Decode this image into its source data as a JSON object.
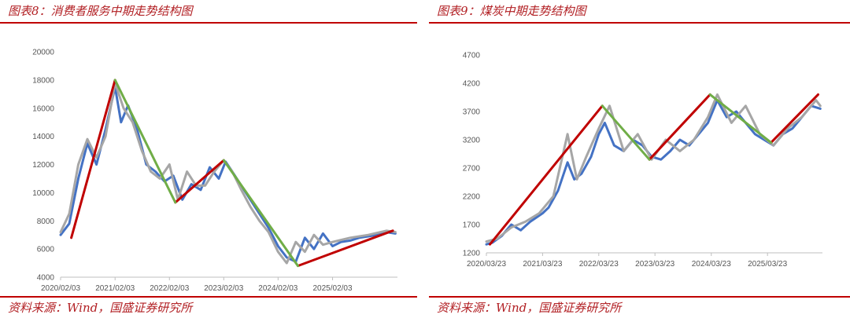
{
  "left": {
    "title": "图表8：消费者服务中期走势结构图",
    "source": "资料来源：Wind，国盛证券研究所"
  },
  "right": {
    "title": "图表9：煤炭中期走势结构图",
    "source": "资料来源：Wind，国盛证券研究所"
  },
  "chart_data": [
    {
      "type": "line",
      "title": "",
      "xlabel": "",
      "ylabel": "",
      "x_ticks": [
        "2020/02/03",
        "2021/02/03",
        "2022/02/03",
        "2023/02/03",
        "2024/02/03",
        "2025/02/03"
      ],
      "x_range": [
        "2020/02/03",
        "2026/04/15"
      ],
      "ylim": [
        4000,
        20000
      ],
      "y_ticks": [
        4000,
        6000,
        8000,
        10000,
        12000,
        14000,
        16000,
        18000,
        20000
      ],
      "grid": false,
      "legend": "none",
      "colors": {
        "price": "#4472c4",
        "smooth": "#a6a6a6",
        "up": "#c00000",
        "down": "#70ad47"
      },
      "series": [
        {
          "role": "price",
          "x": [
            "2020/02/03",
            "2020/04/01",
            "2020/06/01",
            "2020/08/01",
            "2020/10/01",
            "2020/12/01",
            "2021/02/03",
            "2021/03/15",
            "2021/05/01",
            "2021/07/01",
            "2021/09/01",
            "2021/11/01",
            "2022/01/01",
            "2022/03/01",
            "2022/05/01",
            "2022/07/01",
            "2022/09/01",
            "2022/11/01",
            "2023/01/01",
            "2023/02/15",
            "2023/04/01",
            "2023/06/01",
            "2023/08/01",
            "2023/10/01",
            "2023/12/01",
            "2024/02/03",
            "2024/04/01",
            "2024/06/01",
            "2024/08/01",
            "2024/10/01",
            "2024/12/01",
            "2025/02/03",
            "2025/04/01",
            "2025/06/01",
            "2025/08/01",
            "2025/10/01",
            "2025/12/01",
            "2026/02/01",
            "2026/04/01"
          ],
          "y": [
            7000,
            7800,
            11000,
            13500,
            12000,
            14500,
            17500,
            15000,
            16200,
            14500,
            12000,
            11500,
            10800,
            11200,
            9500,
            10600,
            10200,
            11800,
            11000,
            12200,
            11500,
            10500,
            9500,
            8500,
            7500,
            6200,
            5400,
            5100,
            6800,
            6000,
            7100,
            6200,
            6500,
            6600,
            6800,
            6900,
            7000,
            7200,
            7100
          ]
        },
        {
          "role": "smooth",
          "x": [
            "2020/02/03",
            "2020/04/01",
            "2020/06/01",
            "2020/08/01",
            "2020/10/01",
            "2020/12/01",
            "2021/02/03",
            "2021/04/01",
            "2021/06/01",
            "2021/08/01",
            "2021/10/01",
            "2021/12/01",
            "2022/02/03",
            "2022/04/01",
            "2022/06/01",
            "2022/08/01",
            "2022/10/01",
            "2022/12/01",
            "2023/02/03",
            "2023/04/01",
            "2023/06/01",
            "2023/08/01",
            "2023/10/01",
            "2023/12/01",
            "2024/02/03",
            "2024/04/01",
            "2024/06/01",
            "2024/08/01",
            "2024/10/01",
            "2024/12/01",
            "2025/02/03",
            "2025/06/01",
            "2025/10/01",
            "2026/02/01",
            "2026/04/01"
          ],
          "y": [
            7200,
            8500,
            12000,
            13800,
            12500,
            14000,
            17800,
            16000,
            15000,
            13000,
            11500,
            11000,
            12000,
            9500,
            11500,
            10500,
            10500,
            11500,
            12300,
            11500,
            10200,
            9000,
            8000,
            7200,
            5800,
            5000,
            6500,
            5800,
            7000,
            6300,
            6500,
            6800,
            7000,
            7300,
            7200
          ]
        },
        {
          "role": "up",
          "x": [
            "2020/04/15",
            "2021/02/03"
          ],
          "y": [
            6800,
            18000
          ]
        },
        {
          "role": "down",
          "x": [
            "2021/02/03",
            "2022/03/15"
          ],
          "y": [
            18000,
            9300
          ]
        },
        {
          "role": "up",
          "x": [
            "2022/03/15",
            "2023/02/03"
          ],
          "y": [
            9300,
            12300
          ]
        },
        {
          "role": "down",
          "x": [
            "2023/02/03",
            "2024/06/15"
          ],
          "y": [
            12300,
            4800
          ]
        },
        {
          "role": "up",
          "x": [
            "2024/06/15",
            "2026/03/15"
          ],
          "y": [
            4800,
            7300
          ]
        }
      ]
    },
    {
      "type": "line",
      "title": "",
      "xlabel": "",
      "ylabel": "",
      "x_ticks": [
        "2020/03/23",
        "2021/03/23",
        "2022/03/23",
        "2023/03/23",
        "2024/03/23",
        "2025/03/23"
      ],
      "x_range": [
        "2020/03/23",
        "2026/03/15"
      ],
      "ylim": [
        1200,
        4700
      ],
      "y_ticks": [
        1200,
        1700,
        2200,
        2700,
        3200,
        3700,
        4200,
        4700
      ],
      "grid": false,
      "legend": "none",
      "colors": {
        "price": "#4472c4",
        "smooth": "#a6a6a6",
        "up": "#c00000",
        "down": "#70ad47"
      },
      "series": [
        {
          "role": "price",
          "x": [
            "2020/03/23",
            "2020/05/01",
            "2020/07/01",
            "2020/09/01",
            "2020/11/01",
            "2021/01/01",
            "2021/03/23",
            "2021/05/01",
            "2021/07/01",
            "2021/09/01",
            "2021/10/15",
            "2021/12/01",
            "2022/02/01",
            "2022/03/23",
            "2022/05/01",
            "2022/07/01",
            "2022/09/01",
            "2022/11/01",
            "2023/01/01",
            "2023/03/01",
            "2023/05/01",
            "2023/07/01",
            "2023/09/01",
            "2023/11/01",
            "2024/01/01",
            "2024/03/01",
            "2024/05/01",
            "2024/07/01",
            "2024/09/01",
            "2024/11/01",
            "2025/01/01",
            "2025/03/01",
            "2025/05/01",
            "2025/07/01",
            "2025/09/01",
            "2025/11/01",
            "2026/01/01",
            "2026/03/01"
          ],
          "y": [
            1350,
            1380,
            1500,
            1700,
            1600,
            1750,
            1900,
            2000,
            2300,
            2800,
            2500,
            2600,
            2900,
            3300,
            3500,
            3100,
            3000,
            3200,
            3100,
            2900,
            2850,
            3000,
            3200,
            3100,
            3300,
            3500,
            3900,
            3600,
            3700,
            3500,
            3300,
            3200,
            3100,
            3300,
            3400,
            3600,
            3800,
            3750
          ]
        },
        {
          "role": "smooth",
          "x": [
            "2020/03/23",
            "2020/06/01",
            "2020/09/01",
            "2020/12/01",
            "2021/03/01",
            "2021/06/01",
            "2021/09/01",
            "2021/11/01",
            "2022/01/01",
            "2022/03/23",
            "2022/06/01",
            "2022/09/01",
            "2022/12/01",
            "2023/03/01",
            "2023/06/01",
            "2023/09/01",
            "2023/12/01",
            "2024/03/01",
            "2024/05/01",
            "2024/08/01",
            "2024/11/01",
            "2025/02/01",
            "2025/05/01",
            "2025/08/01",
            "2025/11/01",
            "2026/02/01",
            "2026/03/01"
          ],
          "y": [
            1400,
            1450,
            1650,
            1750,
            1900,
            2200,
            3300,
            2500,
            2900,
            3400,
            3800,
            3000,
            3300,
            2850,
            3200,
            3000,
            3200,
            3600,
            4000,
            3500,
            3800,
            3300,
            3100,
            3400,
            3600,
            3900,
            3800
          ]
        },
        {
          "role": "up",
          "x": [
            "2020/04/15",
            "2022/04/15"
          ],
          "y": [
            1350,
            3800
          ]
        },
        {
          "role": "down",
          "x": [
            "2022/04/15",
            "2023/02/15"
          ],
          "y": [
            3800,
            2850
          ]
        },
        {
          "role": "up",
          "x": [
            "2023/02/15",
            "2024/03/15"
          ],
          "y": [
            2850,
            4000
          ]
        },
        {
          "role": "down",
          "x": [
            "2024/03/15",
            "2025/04/15"
          ],
          "y": [
            4000,
            3150
          ]
        },
        {
          "role": "up",
          "x": [
            "2025/04/15",
            "2026/02/15"
          ],
          "y": [
            3150,
            4000
          ]
        }
      ]
    }
  ]
}
